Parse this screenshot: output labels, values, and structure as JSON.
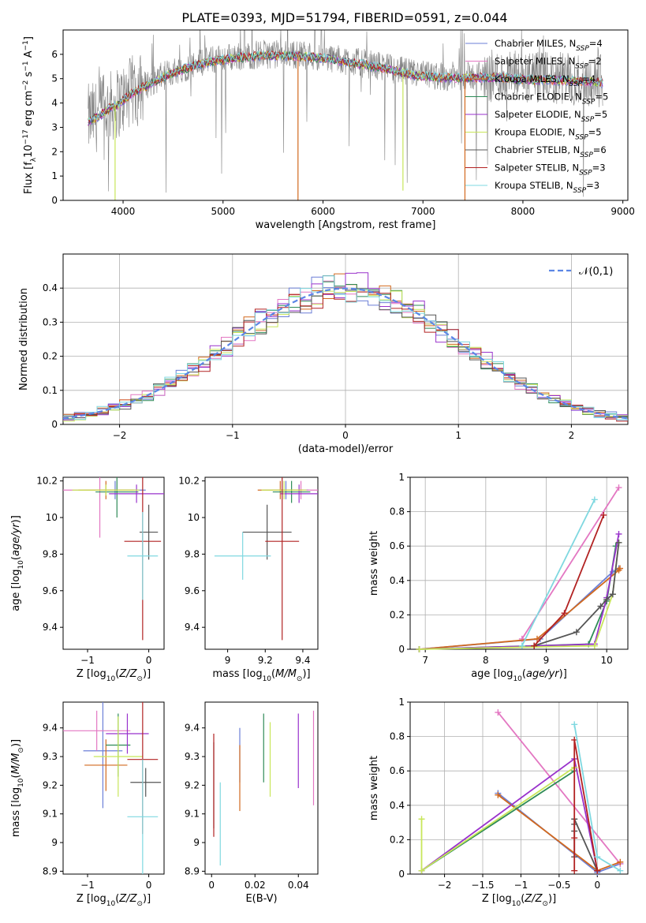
{
  "figure": {
    "title": "PLATE=0393, MJD=51794, FIBERID=0591, z=0.044"
  },
  "models": [
    {
      "name": "Chabrier MILES",
      "nssp": "4",
      "color": "#6b7fd7"
    },
    {
      "name": "Salpeter MILES",
      "nssp": "2",
      "color": "#e377c2"
    },
    {
      "name": "Kroupa MILES",
      "nssp": "4",
      "color": "#d2691e"
    },
    {
      "name": "Chabrier ELODIE",
      "nssp": "5",
      "color": "#2e8b57"
    },
    {
      "name": "Salpeter ELODIE",
      "nssp": "5",
      "color": "#9932cc"
    },
    {
      "name": "Kroupa ELODIE",
      "nssp": "5",
      "color": "#c8e65a"
    },
    {
      "name": "Chabrier STELIB",
      "nssp": "6",
      "color": "#555555"
    },
    {
      "name": "Salpeter STELIB",
      "nssp": "3",
      "color": "#b22222"
    },
    {
      "name": "Kroupa STELIB",
      "nssp": "3",
      "color": "#7fd8e0"
    }
  ],
  "chart_data": [
    {
      "id": "spectrum",
      "type": "line",
      "xlabel": "wavelength [Angstrom, rest frame]",
      "ylabel": "Flux [f_λ 10^-17 erg cm^-2 s^-1 A^-1]",
      "xlim": [
        3400,
        9050
      ],
      "ylim": [
        0,
        7
      ],
      "xticks": [
        4000,
        5000,
        6000,
        7000,
        8000,
        9000
      ],
      "yticks": [
        0,
        1,
        2,
        3,
        4,
        5,
        6
      ],
      "data_color": "#808080",
      "data_envelope": {
        "x": [
          3650,
          3750,
          3850,
          3950,
          4100,
          4300,
          4500,
          4800,
          5100,
          5400,
          5700,
          6000,
          6300,
          6600,
          6900,
          7200,
          7500,
          7800,
          8100,
          8400,
          8800
        ],
        "y": [
          3.3,
          3.5,
          3.8,
          4.0,
          4.5,
          4.9,
          5.3,
          5.7,
          5.9,
          6.0,
          6.0,
          5.9,
          5.7,
          5.5,
          5.2,
          5.1,
          5.1,
          5.1,
          5.0,
          5.0,
          4.9
        ]
      },
      "model_dips": [
        {
          "x": 5750,
          "y": 0.0,
          "model": 2
        },
        {
          "x": 6800,
          "y": 0.4,
          "model": 5
        },
        {
          "x": 7420,
          "y": 0.0,
          "model": 2
        },
        {
          "x": 3920,
          "y": 0.0,
          "model": 5
        }
      ]
    },
    {
      "id": "residuals",
      "type": "area",
      "xlabel": "(data-model)/error",
      "ylabel": "Normed distribution",
      "xlim": [
        -2.5,
        2.5
      ],
      "ylim": [
        0,
        0.5
      ],
      "xticks": [
        -2,
        -1,
        0,
        1,
        2
      ],
      "yticks": [
        0.0,
        0.1,
        0.2,
        0.3,
        0.4
      ],
      "bin_width": 0.1,
      "bin_start": -2.5,
      "reference": {
        "name": "𝒩(0,1)",
        "mu": 0,
        "sigma": 1,
        "color": "#5b86e5"
      },
      "grid": true,
      "legend": "top-right"
    },
    {
      "id": "age_vs_Z",
      "type": "scatter",
      "xlabel": "Z [log10(Z/Z⊙)]",
      "ylabel": "age [log10(age/yr)]",
      "xlim": [
        -1.4,
        0.25
      ],
      "ylim": [
        9.28,
        10.22
      ],
      "xticks": [
        -1,
        0
      ],
      "yticks": [
        9.4,
        9.6,
        9.8,
        10.0,
        10.2
      ],
      "points": [
        {
          "model": 0,
          "x": -0.55,
          "xerr": 0.5,
          "y": 10.15,
          "yerr": 0.05
        },
        {
          "model": 1,
          "x": -0.8,
          "xerr": 0.62,
          "y": 10.15,
          "yerr": 0.26
        },
        {
          "model": 2,
          "x": -0.7,
          "xerr": 0.45,
          "y": 10.15,
          "yerr": 0.05
        },
        {
          "model": 3,
          "x": -0.52,
          "xerr": 0.35,
          "y": 10.14,
          "yerr": 0.14
        },
        {
          "model": 4,
          "x": -0.2,
          "xerr": 0.45,
          "y": 10.13,
          "yerr": 0.05
        },
        {
          "model": 5,
          "x": -0.7,
          "xerr": 0.55,
          "y": 10.15,
          "yerr": 0.03
        },
        {
          "model": 6,
          "x": 0.0,
          "xerr": 0.15,
          "y": 9.92,
          "yerr": 0.15
        },
        {
          "model": 7,
          "x": -0.1,
          "xerr": 0.3,
          "y": 9.87,
          "yerr": 0.54
        },
        {
          "model": 8,
          "x": -0.1,
          "xerr": 0.25,
          "y": 9.79,
          "yerr": 0.24
        }
      ]
    },
    {
      "id": "age_vs_mass",
      "type": "scatter",
      "xlabel": "mass [log10(M/M⊙)]",
      "ylabel": "",
      "xlim": [
        8.88,
        9.48
      ],
      "ylim": [
        9.28,
        10.22
      ],
      "xticks": [
        9.0,
        9.2,
        9.4
      ],
      "yticks": [
        9.4,
        9.6,
        9.8,
        10.0,
        10.2
      ],
      "points": [
        {
          "model": 0,
          "x": 9.31,
          "xerr": 0.12,
          "y": 10.15,
          "yerr": 0.05
        },
        {
          "model": 1,
          "x": 9.39,
          "xerr": 0.15,
          "y": 10.15,
          "yerr": 0.05
        },
        {
          "model": 2,
          "x": 9.28,
          "xerr": 0.12,
          "y": 10.15,
          "yerr": 0.05
        },
        {
          "model": 3,
          "x": 9.34,
          "xerr": 0.1,
          "y": 10.14,
          "yerr": 0.06
        },
        {
          "model": 4,
          "x": 9.38,
          "xerr": 0.1,
          "y": 10.13,
          "yerr": 0.05
        },
        {
          "model": 5,
          "x": 9.3,
          "xerr": 0.12,
          "y": 10.15,
          "yerr": 0.05
        },
        {
          "model": 6,
          "x": 9.21,
          "xerr": 0.13,
          "y": 9.92,
          "yerr": 0.15
        },
        {
          "model": 7,
          "x": 9.29,
          "xerr": 0.09,
          "y": 9.87,
          "yerr": 0.54
        },
        {
          "model": 8,
          "x": 9.08,
          "xerr": 0.15,
          "y": 9.79,
          "yerr": 0.13
        }
      ]
    },
    {
      "id": "weight_vs_age",
      "type": "line",
      "xlabel": "age [log10(age/yr)]",
      "ylabel": "mass weight",
      "xlim": [
        6.75,
        10.35
      ],
      "ylim": [
        0,
        1.0
      ],
      "xticks": [
        7,
        8,
        9,
        10
      ],
      "yticks": [
        0.0,
        0.2,
        0.4,
        0.6,
        0.8,
        1.0
      ],
      "grid": true,
      "series": [
        {
          "model": 0,
          "x": [
            6.9,
            8.9,
            10.1,
            10.2
          ],
          "y": [
            0.0,
            0.06,
            0.45,
            0.47
          ]
        },
        {
          "model": 1,
          "x": [
            8.6,
            10.2
          ],
          "y": [
            0.06,
            0.94
          ]
        },
        {
          "model": 2,
          "x": [
            6.9,
            8.85,
            10.2,
            10.22
          ],
          "y": [
            0.0,
            0.06,
            0.46,
            0.47
          ]
        },
        {
          "model": 3,
          "x": [
            6.9,
            9.7,
            10.0,
            10.15
          ],
          "y": [
            0.0,
            0.03,
            0.28,
            0.6
          ]
        },
        {
          "model": 4,
          "x": [
            6.9,
            9.8,
            10.0,
            10.2
          ],
          "y": [
            0.0,
            0.03,
            0.3,
            0.67
          ]
        },
        {
          "model": 5,
          "x": [
            6.9,
            9.8,
            10.1,
            10.2
          ],
          "y": [
            0.0,
            0.02,
            0.32,
            0.62
          ]
        },
        {
          "model": 6,
          "x": [
            8.8,
            9.5,
            9.9,
            10.0,
            10.1,
            10.2
          ],
          "y": [
            0.02,
            0.1,
            0.25,
            0.29,
            0.32,
            0.62
          ]
        },
        {
          "model": 7,
          "x": [
            8.8,
            9.3,
            9.95
          ],
          "y": [
            0.02,
            0.21,
            0.78
          ]
        },
        {
          "model": 8,
          "x": [
            8.6,
            9.8
          ],
          "y": [
            0.02,
            0.87
          ]
        }
      ]
    },
    {
      "id": "mass_vs_Z",
      "type": "scatter",
      "xlabel": "Z [log10(Z/Z⊙)]",
      "ylabel": "mass [log10(M/M⊙)]",
      "xlim": [
        -1.4,
        0.25
      ],
      "ylim": [
        8.89,
        9.49
      ],
      "xticks": [
        -1,
        0
      ],
      "yticks": [
        8.9,
        9.0,
        9.1,
        9.2,
        9.3,
        9.4
      ],
      "points": [
        {
          "model": 0,
          "x": -0.75,
          "xerr": 0.32,
          "y": 9.32,
          "yerr": 0.2
        },
        {
          "model": 1,
          "x": -0.85,
          "xerr": 0.55,
          "y": 9.39,
          "yerr": 0.07
        },
        {
          "model": 2,
          "x": -0.7,
          "xerr": 0.35,
          "y": 9.27,
          "yerr": 0.09
        },
        {
          "model": 3,
          "x": -0.5,
          "xerr": 0.2,
          "y": 9.34,
          "yerr": 0.11
        },
        {
          "model": 4,
          "x": -0.35,
          "xerr": 0.35,
          "y": 9.38,
          "yerr": 0.07
        },
        {
          "model": 5,
          "x": -0.5,
          "xerr": 0.4,
          "y": 9.3,
          "yerr": 0.14
        },
        {
          "model": 6,
          "x": -0.05,
          "xerr": 0.25,
          "y": 9.21,
          "yerr": 0.05
        },
        {
          "model": 7,
          "x": -0.1,
          "xerr": 0.25,
          "y": 9.29,
          "yerr": 0.26
        },
        {
          "model": 8,
          "x": -0.1,
          "xerr": 0.25,
          "y": 9.09,
          "yerr": 0.2
        }
      ]
    },
    {
      "id": "mass_vs_ebv",
      "type": "scatter",
      "xlabel": "E(B-V)",
      "ylabel": "",
      "xlim": [
        -0.003,
        0.049
      ],
      "ylim": [
        8.89,
        9.49
      ],
      "xticks": [
        0.0,
        0.02,
        0.04
      ],
      "yticks": [
        8.9,
        9.0,
        9.1,
        9.2,
        9.3,
        9.4
      ],
      "points": [
        {
          "model": 0,
          "x": 0.013,
          "ylo": 9.21,
          "yhi": 9.4
        },
        {
          "model": 1,
          "x": 0.047,
          "ylo": 9.13,
          "yhi": 9.46
        },
        {
          "model": 2,
          "x": 0.013,
          "ylo": 9.11,
          "yhi": 9.34
        },
        {
          "model": 3,
          "x": 0.024,
          "ylo": 9.21,
          "yhi": 9.45
        },
        {
          "model": 4,
          "x": 0.04,
          "ylo": 9.19,
          "yhi": 9.45
        },
        {
          "model": 5,
          "x": 0.027,
          "ylo": 9.16,
          "yhi": 9.42
        },
        {
          "model": 6,
          "x": 0.001,
          "ylo": 9.05,
          "yhi": 9.35
        },
        {
          "model": 7,
          "x": 0.001,
          "ylo": 9.02,
          "yhi": 9.38
        },
        {
          "model": 8,
          "x": 0.004,
          "ylo": 8.92,
          "yhi": 9.21
        }
      ]
    },
    {
      "id": "weight_vs_Z",
      "type": "line",
      "xlabel": "Z [log10(Z/Z⊙)]",
      "ylabel": "mass weight",
      "xlim": [
        -2.45,
        0.4
      ],
      "ylim": [
        0,
        1.0
      ],
      "xticks": [
        -2.0,
        -1.5,
        -1.0,
        -0.5,
        0.0
      ],
      "yticks": [
        0.0,
        0.2,
        0.4,
        0.6,
        0.8,
        1.0
      ],
      "grid": true,
      "series": [
        {
          "model": 0,
          "x": [
            -1.3,
            0.0,
            0.3
          ],
          "y": [
            0.47,
            0.01,
            0.06
          ]
        },
        {
          "model": 1,
          "x": [
            -1.3,
            0.3
          ],
          "y": [
            0.94,
            0.06
          ]
        },
        {
          "model": 2,
          "x": [
            -1.3,
            0.0,
            0.3
          ],
          "y": [
            0.46,
            0.02,
            0.07
          ]
        },
        {
          "model": 3,
          "x": [
            -2.3,
            -0.3
          ],
          "y": [
            0.02,
            0.6
          ]
        },
        {
          "model": 4,
          "x": [
            -2.3,
            -0.3,
            0.0
          ],
          "y": [
            0.02,
            0.67,
            0.02
          ]
        },
        {
          "model": 5,
          "x": [
            -2.3,
            -2.3,
            -0.3
          ],
          "y": [
            0.32,
            0.02,
            0.62
          ]
        },
        {
          "model": 6,
          "x": [
            -0.3,
            -0.3,
            -0.3,
            -0.3,
            0.0
          ],
          "y": [
            0.1,
            0.25,
            0.29,
            0.32,
            0.02
          ]
        },
        {
          "model": 7,
          "x": [
            -0.3,
            -0.3,
            -0.3,
            0.0
          ],
          "y": [
            0.02,
            0.21,
            0.78,
            0.02
          ]
        },
        {
          "model": 8,
          "x": [
            -0.3,
            0.0,
            0.3
          ],
          "y": [
            0.87,
            0.1,
            0.02
          ]
        }
      ]
    }
  ]
}
